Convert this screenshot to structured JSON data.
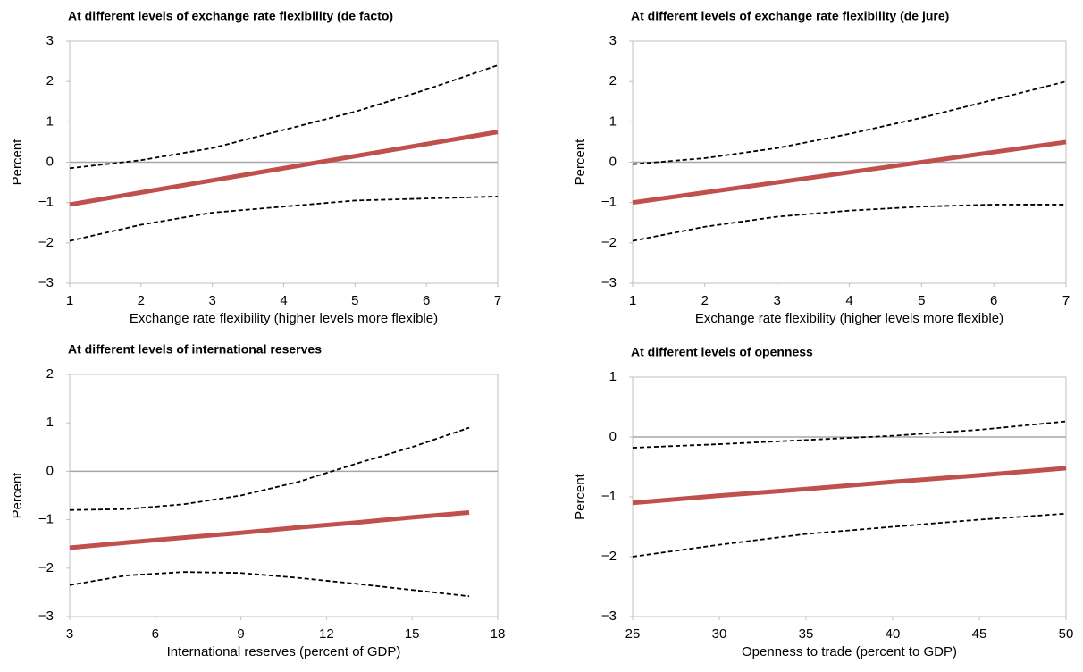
{
  "chart_data": [
    {
      "type": "line",
      "title": "At different levels of exchange rate flexibility (de facto)",
      "xlabel": "Exchange rate flexibility (higher levels more flexible)",
      "ylabel": "Percent",
      "x": [
        1,
        2,
        3,
        4,
        5,
        6,
        7
      ],
      "xlim": [
        1,
        7
      ],
      "xticks": [
        1,
        2,
        3,
        4,
        5,
        6,
        7
      ],
      "ylim": [
        -3,
        3
      ],
      "yticks": [
        {
          "value": -3,
          "label": "−3"
        },
        {
          "value": -2,
          "label": "−2"
        },
        {
          "value": -1,
          "label": "−1"
        },
        0,
        1,
        2,
        3
      ],
      "series": [
        {
          "color": "#c0504d",
          "dashed": false,
          "values": [
            -1.05,
            -0.75,
            -0.45,
            -0.15,
            0.15,
            0.45,
            0.75
          ]
        },
        {
          "color": "#000000",
          "dashed": true,
          "values": [
            -0.15,
            0.05,
            0.35,
            0.8,
            1.25,
            1.8,
            2.4
          ]
        },
        {
          "color": "#000000",
          "dashed": true,
          "values": [
            -1.95,
            -1.55,
            -1.25,
            -1.1,
            -0.95,
            -0.9,
            -0.85
          ]
        }
      ]
    },
    {
      "type": "line",
      "title": "At different levels of exchange rate flexibility (de jure)",
      "xlabel": "Exchange rate flexibility (higher levels more flexible)",
      "ylabel": "Percent",
      "x": [
        1,
        2,
        3,
        4,
        5,
        6,
        7
      ],
      "xlim": [
        1,
        7
      ],
      "xticks": [
        1,
        2,
        3,
        4,
        5,
        6,
        7
      ],
      "ylim": [
        -3,
        3
      ],
      "yticks": [
        {
          "value": -3,
          "label": "−3"
        },
        {
          "value": -2,
          "label": "−2"
        },
        {
          "value": -1,
          "label": "−1"
        },
        0,
        1,
        2,
        3
      ],
      "series": [
        {
          "color": "#c0504d",
          "dashed": false,
          "values": [
            -1.0,
            -0.75,
            -0.5,
            -0.25,
            0.0,
            0.25,
            0.5
          ]
        },
        {
          "color": "#000000",
          "dashed": true,
          "values": [
            -0.05,
            0.1,
            0.35,
            0.7,
            1.1,
            1.55,
            2.0
          ]
        },
        {
          "color": "#000000",
          "dashed": true,
          "values": [
            -1.95,
            -1.6,
            -1.35,
            -1.2,
            -1.1,
            -1.05,
            -1.05
          ]
        }
      ]
    },
    {
      "type": "line",
      "title": "At different levels of international reserves",
      "xlabel": "International reserves (percent of GDP)",
      "ylabel": "Percent",
      "x": [
        3,
        5,
        7,
        9,
        11,
        13,
        15,
        17
      ],
      "xlim": [
        3,
        18
      ],
      "xticks": [
        3,
        6,
        9,
        12,
        15,
        18
      ],
      "ylim": [
        -3,
        2
      ],
      "yticks": [
        {
          "value": -3,
          "label": "−3"
        },
        {
          "value": -2,
          "label": "−2"
        },
        {
          "value": -1,
          "label": "−1"
        },
        0,
        1,
        2
      ],
      "series": [
        {
          "color": "#c0504d",
          "dashed": false,
          "values": [
            -1.58,
            -1.47,
            -1.37,
            -1.27,
            -1.16,
            -1.06,
            -0.95,
            -0.85
          ]
        },
        {
          "color": "#000000",
          "dashed": true,
          "values": [
            -0.8,
            -0.78,
            -0.68,
            -0.5,
            -0.22,
            0.15,
            0.5,
            0.9
          ]
        },
        {
          "color": "#000000",
          "dashed": true,
          "values": [
            -2.35,
            -2.15,
            -2.08,
            -2.1,
            -2.2,
            -2.32,
            -2.45,
            -2.58
          ]
        }
      ]
    },
    {
      "type": "line",
      "title": "At different levels of openness",
      "xlabel": "Openness to trade (percent to GDP)",
      "ylabel": "Percent",
      "x": [
        25,
        30,
        35,
        40,
        45,
        50
      ],
      "xlim": [
        25,
        50
      ],
      "xticks": [
        25,
        30,
        35,
        40,
        45,
        50
      ],
      "ylim": [
        -3,
        1
      ],
      "yticks": [
        {
          "value": -3,
          "label": "−3"
        },
        {
          "value": -2,
          "label": "−2"
        },
        {
          "value": -1,
          "label": "−1"
        },
        0,
        1
      ],
      "series": [
        {
          "color": "#c0504d",
          "dashed": false,
          "values": [
            -1.1,
            -0.98,
            -0.87,
            -0.75,
            -0.64,
            -0.52
          ]
        },
        {
          "color": "#000000",
          "dashed": true,
          "values": [
            -0.18,
            -0.12,
            -0.05,
            0.02,
            0.12,
            0.26
          ]
        },
        {
          "color": "#000000",
          "dashed": true,
          "values": [
            -2.0,
            -1.8,
            -1.62,
            -1.5,
            -1.38,
            -1.28
          ]
        }
      ]
    }
  ]
}
